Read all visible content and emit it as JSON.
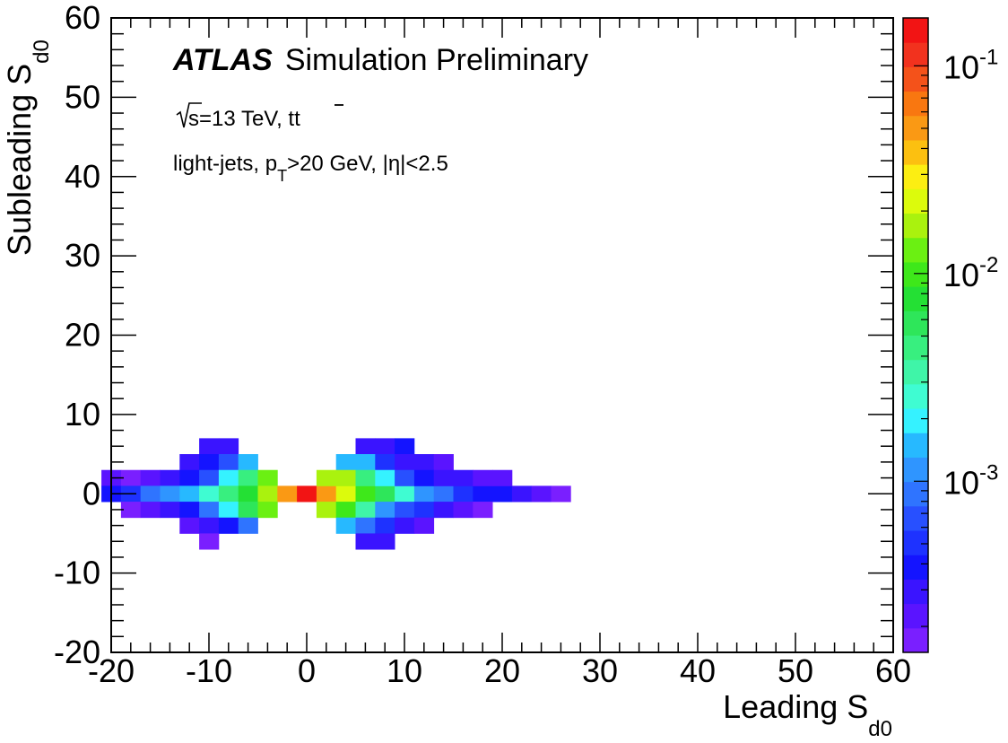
{
  "chart_data": {
    "type": "heatmap",
    "title_bold": "ATLAS",
    "title_rest": "Simulation Preliminary",
    "annotations": {
      "energy_prefix": "s=13 TeV, t",
      "energy_suffix": "t",
      "selection_prefix": "light-jets, p",
      "selection_sub": "T",
      "selection_suffix": ">20 GeV, |η|<2.5"
    },
    "xlabel": "Leading S",
    "xlabel_sub": "d0",
    "ylabel": "Subleading S",
    "ylabel_sub": "d0",
    "xlim": [
      -20,
      60
    ],
    "ylim": [
      -20,
      60
    ],
    "x_ticks": [
      -20,
      -10,
      0,
      10,
      20,
      30,
      40,
      50,
      60
    ],
    "y_ticks": [
      -20,
      -10,
      0,
      10,
      20,
      30,
      40,
      50,
      60
    ],
    "x_tick_labels": [
      "-20",
      "-10",
      "0",
      "10",
      "20",
      "30",
      "40",
      "50",
      "60"
    ],
    "y_tick_labels": [
      "-20",
      "-10",
      "0",
      "10",
      "20",
      "30",
      "40",
      "50",
      "60"
    ],
    "bin_width": 2,
    "colorbar": {
      "scale": "log",
      "range": [
        0.00015,
        0.17
      ],
      "labels": [
        {
          "value": 0.1,
          "base": "10",
          "exp": "-1"
        },
        {
          "value": 0.01,
          "base": "10",
          "exp": "-2"
        },
        {
          "value": 0.001,
          "base": "10",
          "exp": "-3"
        }
      ]
    },
    "palette": [
      "#7a1fff",
      "#5a14ff",
      "#3a14ff",
      "#1414ff",
      "#1e32ff",
      "#2850ff",
      "#2f74ff",
      "#2f95ff",
      "#27b9ff",
      "#35f2ff",
      "#3ffcd2",
      "#3ff5a8",
      "#38ef7f",
      "#2ee65a",
      "#24e034",
      "#3ee81a",
      "#6bf012",
      "#aaf20e",
      "#dcfb0c",
      "#fcee12",
      "#fcc010",
      "#fa9914",
      "#f97710",
      "#f4521a",
      "#f2321e",
      "#f21414"
    ],
    "bins": [
      {
        "x": -10,
        "y": 6,
        "z": 0.00028
      },
      {
        "x": -8,
        "y": 6,
        "z": 0.00028
      },
      {
        "x": -12,
        "y": 4,
        "z": 0.00028
      },
      {
        "x": -10,
        "y": 4,
        "z": 0.00043
      },
      {
        "x": -8,
        "y": 4,
        "z": 0.00075
      },
      {
        "x": -6,
        "y": 4,
        "z": 0.0016
      },
      {
        "x": -20,
        "y": 2,
        "z": 0.00022
      },
      {
        "x": -18,
        "y": 2,
        "z": 0.00018
      },
      {
        "x": -16,
        "y": 2,
        "z": 0.00025
      },
      {
        "x": -14,
        "y": 2,
        "z": 0.00028
      },
      {
        "x": -12,
        "y": 2,
        "z": 0.00035
      },
      {
        "x": -10,
        "y": 2,
        "z": 0.00075
      },
      {
        "x": -8,
        "y": 2,
        "z": 0.002
      },
      {
        "x": -6,
        "y": 2,
        "z": 0.0042
      },
      {
        "x": -4,
        "y": 2,
        "z": 0.012
      },
      {
        "x": -20,
        "y": 0,
        "z": 0.00035
      },
      {
        "x": -18,
        "y": 0,
        "z": 0.00055
      },
      {
        "x": -16,
        "y": 0,
        "z": 0.0009
      },
      {
        "x": -14,
        "y": 0,
        "z": 0.0013
      },
      {
        "x": -12,
        "y": 0,
        "z": 0.0016
      },
      {
        "x": -10,
        "y": 0,
        "z": 0.0025
      },
      {
        "x": -8,
        "y": 0,
        "z": 0.0042
      },
      {
        "x": -6,
        "y": 0,
        "z": 0.0077
      },
      {
        "x": -4,
        "y": 0,
        "z": 0.015
      },
      {
        "x": -2,
        "y": 0,
        "z": 0.045
      },
      {
        "x": 0,
        "y": 0,
        "z": 0.16
      },
      {
        "x": 2,
        "y": 0,
        "z": 0.05
      },
      {
        "x": 4,
        "y": 0,
        "z": 0.021
      },
      {
        "x": 6,
        "y": 0,
        "z": 0.0095
      },
      {
        "x": 8,
        "y": 0,
        "z": 0.0053
      },
      {
        "x": 10,
        "y": 0,
        "z": 0.0025
      },
      {
        "x": 12,
        "y": 0,
        "z": 0.0012
      },
      {
        "x": 14,
        "y": 0,
        "z": 0.0009
      },
      {
        "x": 16,
        "y": 0,
        "z": 0.00055
      },
      {
        "x": 18,
        "y": 0,
        "z": 0.0004
      },
      {
        "x": 20,
        "y": 0,
        "z": 0.0004
      },
      {
        "x": 22,
        "y": 0,
        "z": 0.00028
      },
      {
        "x": 24,
        "y": 0,
        "z": 0.00022
      },
      {
        "x": 26,
        "y": 0,
        "z": 0.00018
      },
      {
        "x": -18,
        "y": -2,
        "z": 0.00018
      },
      {
        "x": -16,
        "y": -2,
        "z": 0.00022
      },
      {
        "x": -14,
        "y": -2,
        "z": 0.00028
      },
      {
        "x": -12,
        "y": -2,
        "z": 0.0004
      },
      {
        "x": -10,
        "y": -2,
        "z": 0.0008
      },
      {
        "x": -8,
        "y": -2,
        "z": 0.0018
      },
      {
        "x": -6,
        "y": -2,
        "z": 0.0056
      },
      {
        "x": -4,
        "y": -2,
        "z": 0.012
      },
      {
        "x": 2,
        "y": -2,
        "z": 0.015
      },
      {
        "x": 4,
        "y": -2,
        "z": 0.011
      },
      {
        "x": 6,
        "y": -2,
        "z": 0.0036
      },
      {
        "x": 8,
        "y": -2,
        "z": 0.0013
      },
      {
        "x": 10,
        "y": -2,
        "z": 0.00075
      },
      {
        "x": 12,
        "y": -2,
        "z": 0.00045
      },
      {
        "x": 14,
        "y": -2,
        "z": 0.00028
      },
      {
        "x": 16,
        "y": -2,
        "z": 0.00022
      },
      {
        "x": 18,
        "y": -2,
        "z": 0.00018
      },
      {
        "x": -12,
        "y": -4,
        "z": 0.00022
      },
      {
        "x": -10,
        "y": -4,
        "z": 0.00028
      },
      {
        "x": -8,
        "y": -4,
        "z": 0.0004
      },
      {
        "x": -6,
        "y": -4,
        "z": 0.0009
      },
      {
        "x": 4,
        "y": -4,
        "z": 0.0016
      },
      {
        "x": 6,
        "y": -4,
        "z": 0.0009
      },
      {
        "x": 8,
        "y": -4,
        "z": 0.00045
      },
      {
        "x": 10,
        "y": -4,
        "z": 0.00028
      },
      {
        "x": 12,
        "y": -4,
        "z": 0.00022
      },
      {
        "x": -10,
        "y": -6,
        "z": 0.00018
      },
      {
        "x": 6,
        "y": -6,
        "z": 0.00028
      },
      {
        "x": 8,
        "y": -6,
        "z": 0.00028
      },
      {
        "x": 6,
        "y": 6,
        "z": 0.00028
      },
      {
        "x": 8,
        "y": 6,
        "z": 0.00028
      },
      {
        "x": 10,
        "y": 6,
        "z": 0.00035
      },
      {
        "x": 4,
        "y": 4,
        "z": 0.0016
      },
      {
        "x": 6,
        "y": 4,
        "z": 0.0016
      },
      {
        "x": 8,
        "y": 4,
        "z": 0.00055
      },
      {
        "x": 10,
        "y": 4,
        "z": 0.00028
      },
      {
        "x": 12,
        "y": 4,
        "z": 0.00028
      },
      {
        "x": 14,
        "y": 4,
        "z": 0.00022
      },
      {
        "x": 2,
        "y": 2,
        "z": 0.015
      },
      {
        "x": 4,
        "y": 2,
        "z": 0.018
      },
      {
        "x": 6,
        "y": 2,
        "z": 0.0045
      },
      {
        "x": 8,
        "y": 2,
        "z": 0.0018
      },
      {
        "x": 10,
        "y": 2,
        "z": 0.00075
      },
      {
        "x": 12,
        "y": 2,
        "z": 0.00035
      },
      {
        "x": 14,
        "y": 2,
        "z": 0.00028
      },
      {
        "x": 16,
        "y": 2,
        "z": 0.00028
      },
      {
        "x": 18,
        "y": 2,
        "z": 0.00022
      },
      {
        "x": 20,
        "y": 2,
        "z": 0.00022
      }
    ]
  }
}
